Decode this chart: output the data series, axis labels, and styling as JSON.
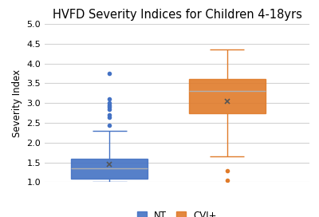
{
  "title": "HVFD Severity Indices for Children 4-18yrs",
  "ylabel": "Severity Index",
  "ylim": [
    1.0,
    5.0
  ],
  "yticks": [
    1.0,
    1.5,
    2.0,
    2.5,
    3.0,
    3.5,
    4.0,
    4.5,
    5.0
  ],
  "NT": {
    "q1": 1.1,
    "median": 1.35,
    "q3": 1.6,
    "whisker_low": 1.0,
    "whisker_high": 2.3,
    "mean": 1.45,
    "outliers": [
      3.75,
      3.1,
      3.0,
      2.95,
      2.9,
      2.85,
      2.7,
      2.65,
      2.45
    ],
    "color": "#4472C4",
    "label": "NT"
  },
  "CVI": {
    "q1": 2.75,
    "median": 3.3,
    "q3": 3.6,
    "whisker_low": 1.65,
    "whisker_high": 4.35,
    "mean": 3.05,
    "outliers": [
      1.3,
      1.05
    ],
    "color": "#E07B2A",
    "label": "CVI+"
  },
  "box_width": 0.65,
  "positions": [
    1,
    2
  ],
  "background_color": "#ffffff",
  "grid_color": "#d3d3d3",
  "title_fontsize": 10.5,
  "label_fontsize": 8.5,
  "tick_fontsize": 8
}
